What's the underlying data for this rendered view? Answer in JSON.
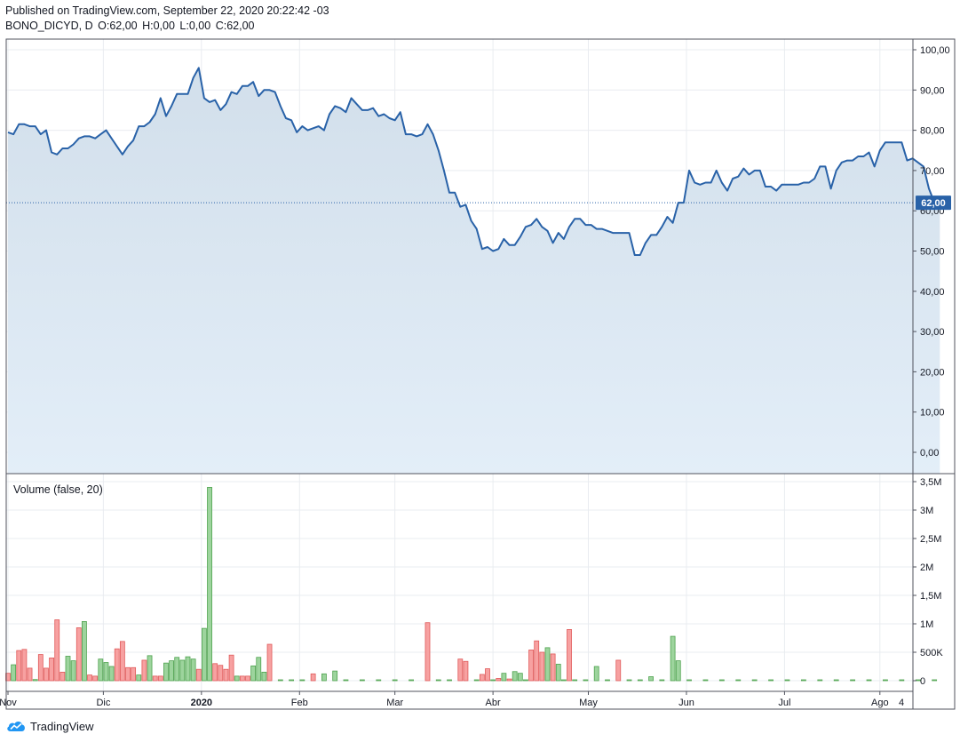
{
  "header": {
    "published": "Published on TradingView.com, September 22, 2020 20:22:42 -03",
    "symbol": "BONO_DICYD, D",
    "ohlc": [
      {
        "k": "O:",
        "v": "62,00"
      },
      {
        "k": "H:",
        "v": "0,00"
      },
      {
        "k": "L:",
        "v": "0,00"
      },
      {
        "k": "C:",
        "v": "62,00"
      }
    ]
  },
  "footer": {
    "brand": "TradingView",
    "logo_icon": "tradingview-cloud-icon"
  },
  "colors": {
    "line": "#2962a8",
    "area_top": "#d2dfeb",
    "area_bottom": "#e3eef8",
    "grid": "#e9ecf0",
    "up": "#9dd49d",
    "up_border": "#4ea24e",
    "down": "#f7a1a1",
    "down_border": "#e05a5a",
    "price_label_bg": "#2962a8"
  },
  "chart_data": [
    {
      "type": "line",
      "panel": "price",
      "ylim": [
        -5,
        102
      ],
      "yticks": [
        0,
        10,
        20,
        30,
        40,
        50,
        60,
        70,
        80,
        90,
        100
      ],
      "ytick_labels": [
        "0,00",
        "10,00",
        "20,00",
        "30,00",
        "40,00",
        "50,00",
        "60,00",
        "70,00",
        "80,00",
        "90,00",
        "100,00"
      ],
      "last_value": 62,
      "last_label": "62,00",
      "x_range": [
        0,
        323
      ],
      "xticks": [
        {
          "x": 0,
          "label": "Nov"
        },
        {
          "x": 35,
          "label": "Dic"
        },
        {
          "x": 71,
          "label": "2020"
        },
        {
          "x": 107,
          "label": "Feb"
        },
        {
          "x": 142,
          "label": "Mar"
        },
        {
          "x": 178,
          "label": "Abr"
        },
        {
          "x": 213,
          "label": "May"
        },
        {
          "x": 249,
          "label": "Jun"
        },
        {
          "x": 285,
          "label": "Jul"
        },
        {
          "x": 320,
          "label": "Ago"
        }
      ],
      "extra_tick_label": "4",
      "points": [
        [
          0,
          79.5
        ],
        [
          2,
          79
        ],
        [
          4,
          81.5
        ],
        [
          6,
          81.5
        ],
        [
          8,
          81
        ],
        [
          10,
          81
        ],
        [
          12,
          79
        ],
        [
          14,
          80
        ],
        [
          16,
          74.5
        ],
        [
          18,
          74
        ],
        [
          20,
          75.5
        ],
        [
          22,
          75.5
        ],
        [
          24,
          76.5
        ],
        [
          26,
          78
        ],
        [
          28,
          78.5
        ],
        [
          30,
          78.5
        ],
        [
          32,
          78
        ],
        [
          34,
          79
        ],
        [
          36,
          80
        ],
        [
          38,
          78
        ],
        [
          40,
          76
        ],
        [
          42,
          74
        ],
        [
          44,
          76
        ],
        [
          46,
          77.5
        ],
        [
          48,
          81
        ],
        [
          50,
          81
        ],
        [
          52,
          82
        ],
        [
          54,
          84
        ],
        [
          56,
          88
        ],
        [
          58,
          83.5
        ],
        [
          60,
          86
        ],
        [
          62,
          89
        ],
        [
          64,
          89
        ],
        [
          66,
          89
        ],
        [
          68,
          93
        ],
        [
          70,
          95.5
        ],
        [
          72,
          88
        ],
        [
          74,
          87
        ],
        [
          76,
          87.5
        ],
        [
          78,
          85
        ],
        [
          80,
          86.5
        ],
        [
          82,
          89.5
        ],
        [
          84,
          89
        ],
        [
          86,
          91
        ],
        [
          88,
          91
        ],
        [
          90,
          92
        ],
        [
          92,
          88.5
        ],
        [
          94,
          90
        ],
        [
          96,
          90
        ],
        [
          98,
          89.5
        ],
        [
          100,
          86
        ],
        [
          102,
          83
        ],
        [
          104,
          82.5
        ],
        [
          106,
          79.5
        ],
        [
          108,
          81
        ],
        [
          110,
          80
        ],
        [
          112,
          80.5
        ],
        [
          114,
          81
        ],
        [
          116,
          80
        ],
        [
          118,
          84
        ],
        [
          120,
          86
        ],
        [
          122,
          85.5
        ],
        [
          124,
          84.5
        ],
        [
          126,
          88
        ],
        [
          128,
          86.5
        ],
        [
          130,
          85
        ],
        [
          132,
          85
        ],
        [
          134,
          85.5
        ],
        [
          136,
          83.5
        ],
        [
          138,
          84
        ],
        [
          140,
          83
        ],
        [
          142,
          82.5
        ],
        [
          144,
          84.5
        ],
        [
          146,
          79
        ],
        [
          148,
          79
        ],
        [
          150,
          78.5
        ],
        [
          152,
          79
        ],
        [
          154,
          81.5
        ],
        [
          156,
          79
        ],
        [
          158,
          75
        ],
        [
          160,
          70
        ],
        [
          162,
          64.5
        ],
        [
          164,
          64.5
        ],
        [
          166,
          61
        ],
        [
          168,
          61.5
        ],
        [
          170,
          57.5
        ],
        [
          172,
          55.5
        ],
        [
          174,
          50.5
        ],
        [
          176,
          51
        ],
        [
          178,
          50
        ],
        [
          180,
          50.5
        ],
        [
          182,
          53
        ],
        [
          184,
          51.5
        ],
        [
          186,
          51.5
        ],
        [
          188,
          53.5
        ],
        [
          190,
          56
        ],
        [
          192,
          56.5
        ],
        [
          194,
          58
        ],
        [
          196,
          56
        ],
        [
          198,
          55
        ],
        [
          200,
          52
        ],
        [
          202,
          54.5
        ],
        [
          204,
          53
        ],
        [
          206,
          56
        ],
        [
          208,
          58
        ],
        [
          210,
          58
        ],
        [
          212,
          56.5
        ],
        [
          214,
          56.5
        ],
        [
          216,
          55.5
        ],
        [
          218,
          55.5
        ],
        [
          220,
          55
        ],
        [
          222,
          54.5
        ],
        [
          224,
          54.5
        ],
        [
          226,
          54.5
        ],
        [
          228,
          54.5
        ],
        [
          230,
          49
        ],
        [
          232,
          49
        ],
        [
          234,
          52
        ],
        [
          236,
          54
        ],
        [
          238,
          54
        ],
        [
          240,
          56
        ],
        [
          242,
          58.5
        ],
        [
          244,
          57
        ],
        [
          246,
          62
        ],
        [
          248,
          62
        ],
        [
          250,
          70
        ],
        [
          252,
          67
        ],
        [
          254,
          66.5
        ],
        [
          256,
          67
        ],
        [
          258,
          67
        ],
        [
          260,
          70
        ],
        [
          262,
          67
        ],
        [
          264,
          65
        ],
        [
          266,
          68
        ],
        [
          268,
          68.5
        ],
        [
          270,
          70.5
        ],
        [
          272,
          69
        ],
        [
          274,
          70
        ],
        [
          276,
          70
        ],
        [
          278,
          66
        ],
        [
          280,
          66
        ],
        [
          282,
          65
        ],
        [
          284,
          66.5
        ],
        [
          286,
          66.5
        ],
        [
          288,
          66.5
        ],
        [
          290,
          66.5
        ],
        [
          292,
          67
        ],
        [
          294,
          67
        ],
        [
          296,
          68
        ],
        [
          298,
          71
        ],
        [
          300,
          71
        ],
        [
          302,
          65.5
        ],
        [
          304,
          70
        ],
        [
          306,
          72
        ],
        [
          308,
          72.5
        ],
        [
          310,
          72.5
        ],
        [
          312,
          73.5
        ],
        [
          314,
          73.5
        ],
        [
          316,
          74.5
        ],
        [
          318,
          71
        ],
        [
          320,
          75
        ],
        [
          322,
          77
        ],
        [
          324,
          77
        ],
        [
          326,
          77
        ],
        [
          328,
          77
        ],
        [
          330,
          72.5
        ],
        [
          332,
          73
        ],
        [
          334,
          72
        ],
        [
          336,
          71
        ],
        [
          338,
          65.5
        ],
        [
          340,
          62
        ],
        [
          342,
          62
        ]
      ]
    },
    {
      "type": "bar",
      "panel": "volume",
      "title": "Volume (false, 20)",
      "ylim": [
        -0.1,
        3.5
      ],
      "yticks": [
        0,
        0.5,
        1,
        1.5,
        2,
        2.5,
        3,
        3.5
      ],
      "ytick_labels": [
        "0",
        "500K",
        "1M",
        "1,5M",
        "2M",
        "2,5M",
        "3M",
        "3,5M"
      ],
      "unit": "M",
      "bars": [
        [
          0,
          0.13,
          "d"
        ],
        [
          2,
          0.28,
          "u"
        ],
        [
          4,
          0.53,
          "d"
        ],
        [
          6,
          0.55,
          "d"
        ],
        [
          8,
          0.22,
          "d"
        ],
        [
          10,
          0.02,
          "u"
        ],
        [
          12,
          0.46,
          "d"
        ],
        [
          14,
          0.22,
          "d"
        ],
        [
          16,
          0.4,
          "d"
        ],
        [
          18,
          1.07,
          "d"
        ],
        [
          20,
          0.15,
          "d"
        ],
        [
          22,
          0.43,
          "u"
        ],
        [
          24,
          0.35,
          "u"
        ],
        [
          26,
          0.93,
          "d"
        ],
        [
          28,
          1.04,
          "u"
        ],
        [
          30,
          0.1,
          "d"
        ],
        [
          32,
          0.08,
          "d"
        ],
        [
          34,
          0.38,
          "u"
        ],
        [
          36,
          0.32,
          "u"
        ],
        [
          38,
          0.25,
          "u"
        ],
        [
          40,
          0.56,
          "d"
        ],
        [
          42,
          0.69,
          "d"
        ],
        [
          44,
          0.23,
          "d"
        ],
        [
          46,
          0.23,
          "d"
        ],
        [
          48,
          0.1,
          "u"
        ],
        [
          50,
          0.36,
          "d"
        ],
        [
          52,
          0.44,
          "u"
        ],
        [
          54,
          0.08,
          "d"
        ],
        [
          56,
          0.08,
          "d"
        ],
        [
          58,
          0.31,
          "u"
        ],
        [
          60,
          0.35,
          "u"
        ],
        [
          62,
          0.41,
          "u"
        ],
        [
          64,
          0.36,
          "u"
        ],
        [
          66,
          0.42,
          "u"
        ],
        [
          68,
          0.38,
          "u"
        ],
        [
          70,
          0.2,
          "d"
        ],
        [
          72,
          0.92,
          "u"
        ],
        [
          74,
          3.4,
          "u"
        ],
        [
          76,
          0.3,
          "d"
        ],
        [
          78,
          0.27,
          "d"
        ],
        [
          80,
          0.2,
          "d"
        ],
        [
          82,
          0.45,
          "d"
        ],
        [
          84,
          0.08,
          "u"
        ],
        [
          86,
          0.08,
          "d"
        ],
        [
          88,
          0.08,
          "d"
        ],
        [
          90,
          0.26,
          "u"
        ],
        [
          92,
          0.41,
          "u"
        ],
        [
          94,
          0.15,
          "u"
        ],
        [
          96,
          0.64,
          "d"
        ],
        [
          100,
          0.01,
          "u"
        ],
        [
          104,
          0.01,
          "u"
        ],
        [
          108,
          0.01,
          "u"
        ],
        [
          112,
          0.12,
          "d"
        ],
        [
          116,
          0.12,
          "u"
        ],
        [
          120,
          0.17,
          "u"
        ],
        [
          124,
          0.01,
          "u"
        ],
        [
          130,
          0.01,
          "u"
        ],
        [
          136,
          0.01,
          "u"
        ],
        [
          142,
          0.01,
          "u"
        ],
        [
          148,
          0.01,
          "u"
        ],
        [
          154,
          1.02,
          "d"
        ],
        [
          158,
          0.01,
          "u"
        ],
        [
          162,
          0.01,
          "u"
        ],
        [
          166,
          0.38,
          "d"
        ],
        [
          168,
          0.34,
          "d"
        ],
        [
          172,
          0.01,
          "u"
        ],
        [
          174,
          0.11,
          "d"
        ],
        [
          176,
          0.21,
          "d"
        ],
        [
          178,
          0.01,
          "u"
        ],
        [
          180,
          0.04,
          "d"
        ],
        [
          182,
          0.13,
          "u"
        ],
        [
          184,
          0.03,
          "d"
        ],
        [
          186,
          0.16,
          "u"
        ],
        [
          188,
          0.13,
          "u"
        ],
        [
          190,
          0.01,
          "u"
        ],
        [
          192,
          0.54,
          "d"
        ],
        [
          194,
          0.7,
          "d"
        ],
        [
          196,
          0.5,
          "d"
        ],
        [
          198,
          0.58,
          "u"
        ],
        [
          200,
          0.47,
          "d"
        ],
        [
          202,
          0.29,
          "u"
        ],
        [
          204,
          0.01,
          "u"
        ],
        [
          206,
          0.9,
          "d"
        ],
        [
          208,
          0.01,
          "u"
        ],
        [
          212,
          0.01,
          "u"
        ],
        [
          216,
          0.25,
          "u"
        ],
        [
          220,
          0.01,
          "u"
        ],
        [
          224,
          0.36,
          "d"
        ],
        [
          228,
          0.01,
          "u"
        ],
        [
          232,
          0.01,
          "u"
        ],
        [
          236,
          0.07,
          "u"
        ],
        [
          240,
          0.01,
          "u"
        ],
        [
          244,
          0.78,
          "u"
        ],
        [
          246,
          0.35,
          "u"
        ],
        [
          250,
          0.01,
          "u"
        ],
        [
          256,
          0.01,
          "u"
        ],
        [
          262,
          0.01,
          "u"
        ],
        [
          268,
          0.01,
          "u"
        ],
        [
          274,
          0.01,
          "u"
        ],
        [
          280,
          0.01,
          "u"
        ],
        [
          286,
          0.01,
          "u"
        ],
        [
          292,
          0.01,
          "u"
        ],
        [
          298,
          0.01,
          "u"
        ],
        [
          304,
          0.01,
          "u"
        ],
        [
          310,
          0.01,
          "u"
        ],
        [
          316,
          0.01,
          "u"
        ],
        [
          322,
          0.01,
          "u"
        ],
        [
          328,
          0.01,
          "u"
        ],
        [
          334,
          0.01,
          "u"
        ],
        [
          340,
          0.01,
          "u"
        ]
      ]
    }
  ]
}
